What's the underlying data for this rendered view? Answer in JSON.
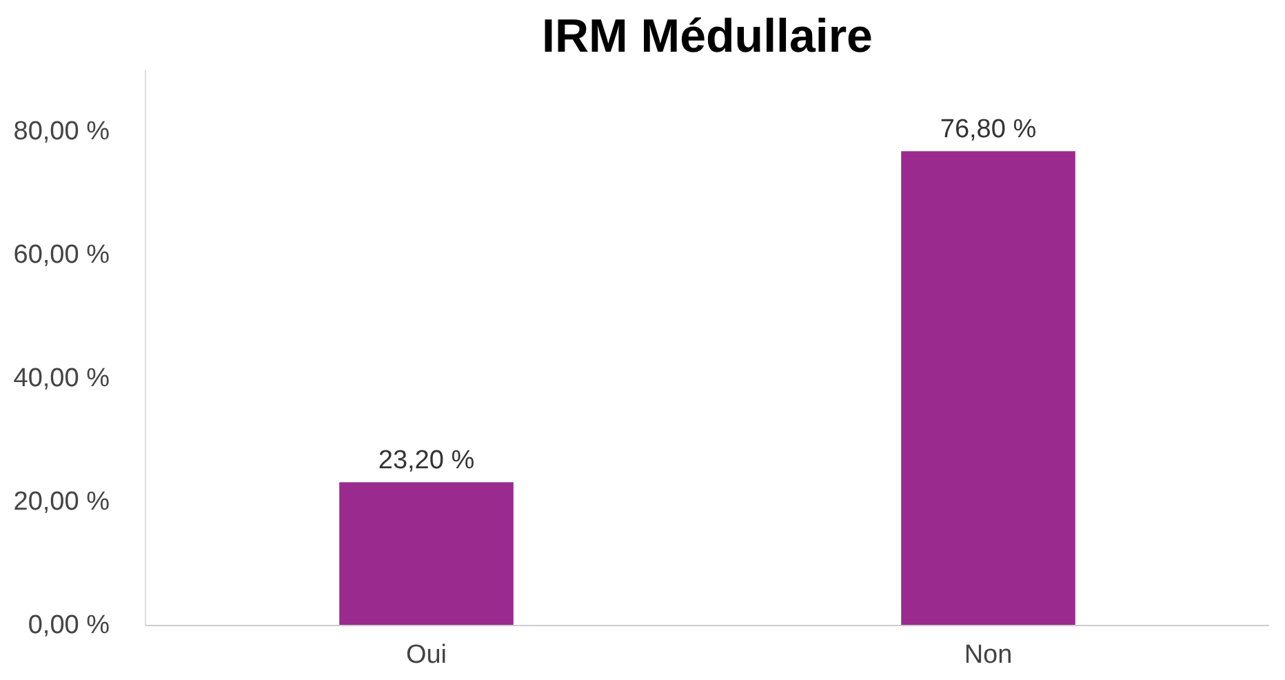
{
  "chart_data": {
    "type": "bar",
    "title": "IRM Médullaire",
    "categories": [
      "Oui",
      "Non"
    ],
    "values": [
      23.2,
      76.8
    ],
    "color": "#9b2a8f",
    "value_labels": [
      "23,20 %",
      "76,80 %"
    ],
    "ylim": [
      0,
      90
    ],
    "yticks": [
      {
        "value": 0,
        "label": "0,00 %"
      },
      {
        "value": 20,
        "label": "20,00 %"
      },
      {
        "value": 40,
        "label": "40,00 %"
      },
      {
        "value": 60,
        "label": "60,00 %"
      },
      {
        "value": 80,
        "label": "80,00 %"
      }
    ],
    "grid": false
  }
}
